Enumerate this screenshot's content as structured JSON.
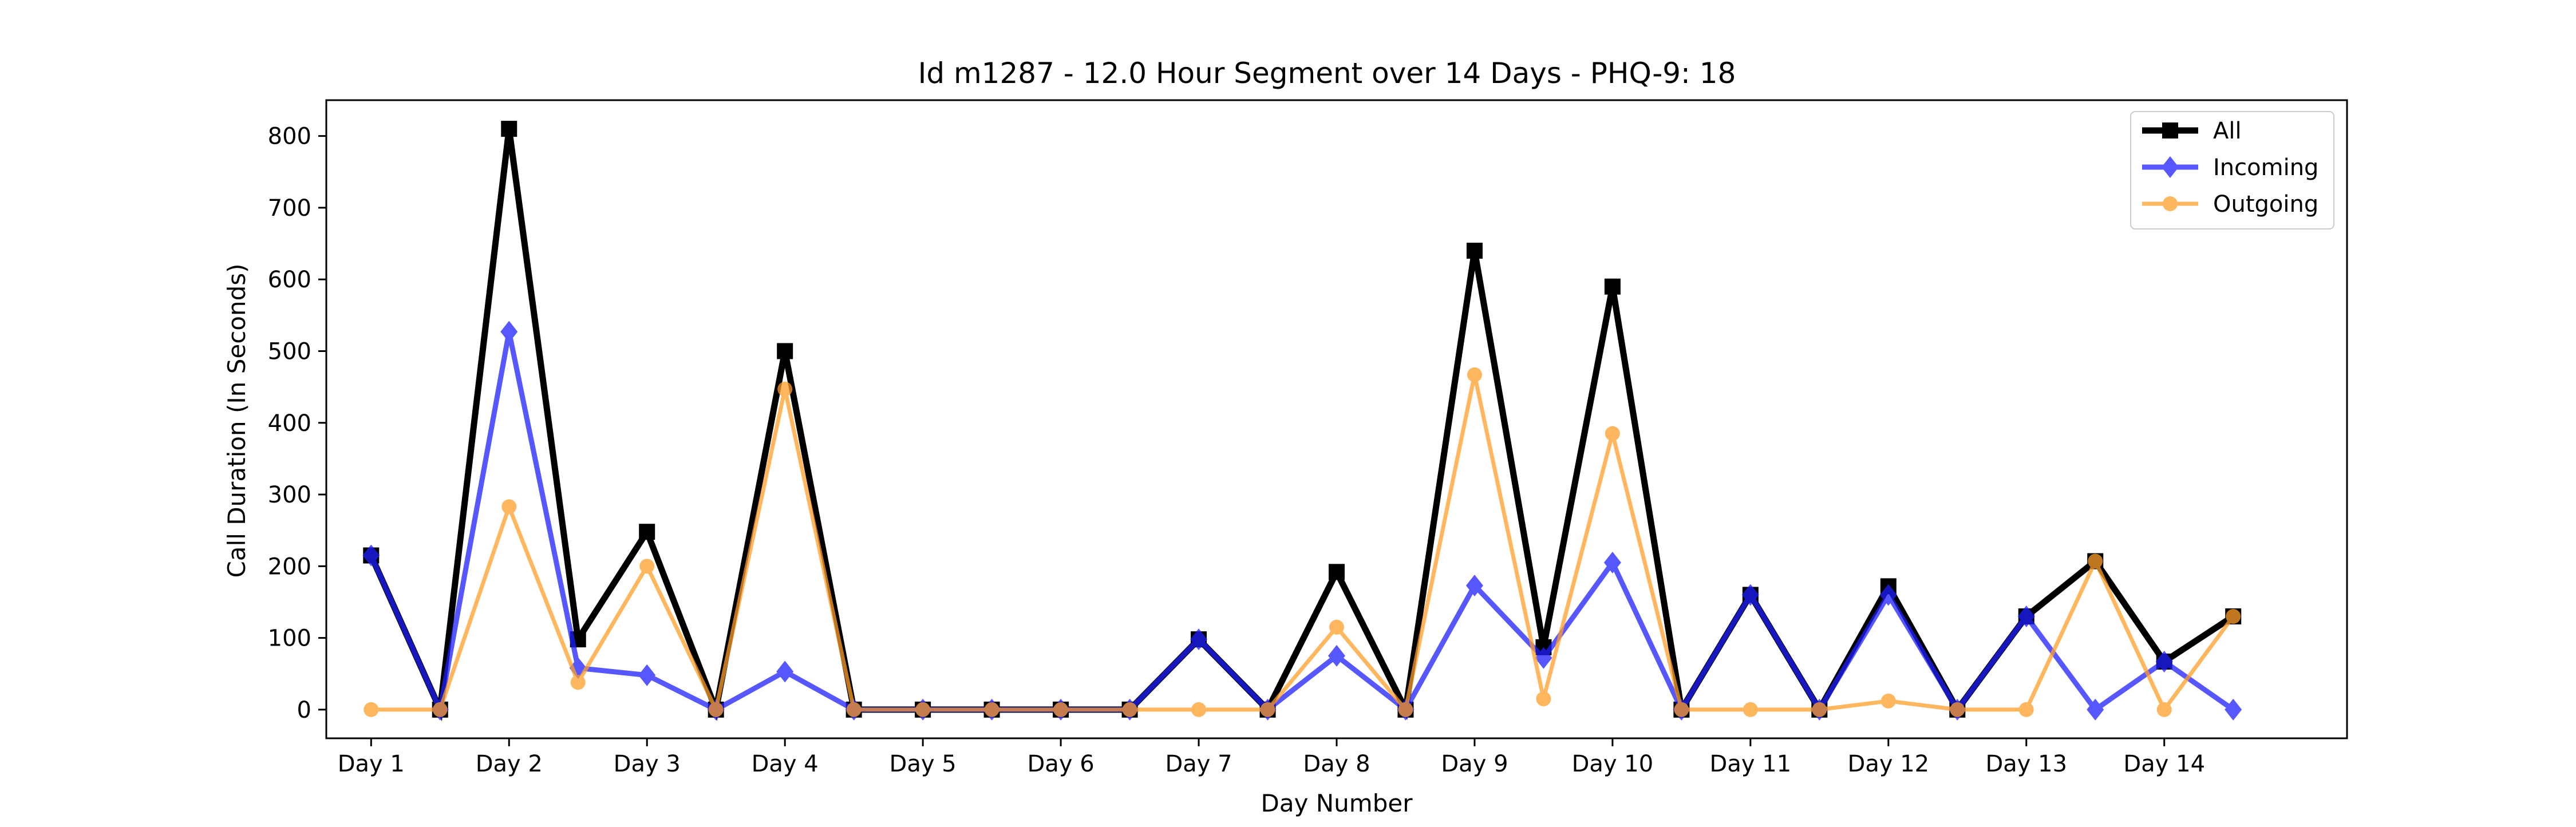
{
  "chart_data": {
    "type": "line",
    "title": "Id m1287 - 12.0 Hour Segment over 14 Days - PHQ-9: 18",
    "xlabel": "Day Number",
    "ylabel": "Call Duration (In Seconds)",
    "ylim": [
      -40,
      850
    ],
    "xlim": [
      -0.65,
      28.65
    ],
    "grid": false,
    "legend_position": "top-right",
    "categories": [
      "Day 1",
      "Day 2",
      "Day 3",
      "Day 4",
      "Day 5",
      "Day 6",
      "Day 7",
      "Day 8",
      "Day 9",
      "Day 10",
      "Day 11",
      "Day 12",
      "Day 13",
      "Day 14"
    ],
    "category_positions": [
      0,
      2,
      4,
      6,
      8,
      10,
      12,
      14,
      16,
      18,
      20,
      22,
      24,
      26
    ],
    "x": [
      0,
      1,
      2,
      3,
      4,
      5,
      6,
      7,
      8,
      9,
      10,
      11,
      12,
      13,
      14,
      15,
      16,
      17,
      18,
      19,
      20,
      21,
      22,
      23,
      24,
      25,
      26,
      27
    ],
    "yticks": [
      0,
      100,
      200,
      300,
      400,
      500,
      600,
      700,
      800
    ],
    "series": [
      {
        "name": "All",
        "color": "#000000",
        "marker": "square",
        "values": [
          215,
          0,
          810,
          98,
          248,
          0,
          500,
          0,
          0,
          0,
          0,
          0,
          98,
          0,
          192,
          0,
          640,
          87,
          590,
          0,
          160,
          0,
          172,
          0,
          130,
          207,
          67,
          130
        ]
      },
      {
        "name": "Incoming",
        "color": "#1f1fff",
        "marker": "diamond",
        "values": [
          215,
          0,
          527,
          58,
          48,
          0,
          53,
          0,
          0,
          0,
          0,
          0,
          98,
          0,
          75,
          0,
          173,
          72,
          205,
          0,
          160,
          0,
          160,
          0,
          130,
          0,
          67,
          0
        ]
      },
      {
        "name": "Outgoing",
        "color": "#ff9f2a",
        "marker": "circle",
        "values": [
          0,
          0,
          283,
          38,
          200,
          0,
          447,
          0,
          0,
          0,
          0,
          0,
          0,
          0,
          115,
          0,
          467,
          15,
          385,
          0,
          0,
          0,
          12,
          0,
          0,
          207,
          0,
          130
        ]
      }
    ]
  }
}
